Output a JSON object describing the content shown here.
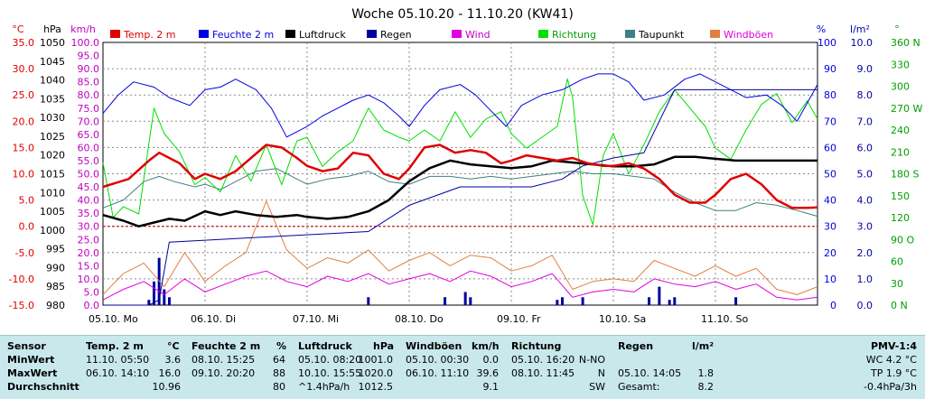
{
  "title": "Woche 05.10.20 - 11.10.20 (KW41)",
  "colors": {
    "temp": "#e00000",
    "humidity": "#0000e0",
    "pressure": "#000000",
    "rain": "#0000a0",
    "wind": "#e000e0",
    "direction": "#00e000",
    "dewpoint": "#408080",
    "gust": "#e08040"
  },
  "axis_units": {
    "temp": "°C",
    "pressure": "hPa",
    "wind": "km/h",
    "humidity": "%",
    "rain": "l/m²",
    "direction": "°"
  },
  "chart_data": {
    "type": "line",
    "title": "Woche 05.10.20 - 11.10.20 (KW41)",
    "legend_position": "top",
    "grid": true,
    "x_labels": [
      "05.10. Mo",
      "06.10. Di",
      "07.10. Mi",
      "08.10. Do",
      "09.10. Fr",
      "10.10. Sa",
      "11.10. So"
    ],
    "x_range": [
      0,
      7
    ],
    "axes": {
      "temp": {
        "unit": "°C",
        "ylim": [
          -15,
          35
        ],
        "ticks": [
          "35.0",
          "30.0",
          "25.0",
          "20.0",
          "15.0",
          "10.0",
          "5.0",
          "0.0",
          "-5.0",
          "-10.0",
          "-15.0"
        ]
      },
      "pressure": {
        "unit": "hPa",
        "ylim": [
          980,
          1050
        ],
        "ticks": [
          "1050",
          "1045",
          "1040",
          "1035",
          "1030",
          "1025",
          "1020",
          "1015",
          "1010",
          "1005",
          "1000",
          "995",
          "990",
          "985",
          "980"
        ]
      },
      "wind": {
        "unit": "km/h",
        "ylim": [
          0,
          100
        ],
        "ticks": [
          "100.0",
          "95.0",
          "90.0",
          "85.0",
          "80.0",
          "75.0",
          "70.0",
          "65.0",
          "60.0",
          "55.0",
          "50.0",
          "45.0",
          "40.0",
          "35.0",
          "30.0",
          "25.0",
          "20.0",
          "15.0",
          "10.0",
          "5.0",
          "0.0"
        ]
      },
      "humidity": {
        "unit": "%",
        "ylim": [
          0,
          100
        ],
        "ticks": [
          "100",
          "90",
          "80",
          "70",
          "60",
          "50",
          "40",
          "30",
          "20",
          "10",
          "0"
        ]
      },
      "rain": {
        "unit": "l/m²",
        "ylim": [
          0,
          10
        ],
        "ticks": [
          "10.0",
          "9.0",
          "8.0",
          "7.0",
          "6.0",
          "5.0",
          "4.0",
          "3.0",
          "2.0",
          "1.0",
          "0.0"
        ]
      },
      "direction": {
        "unit": "°",
        "ylim": [
          0,
          360
        ],
        "ticks": [
          "360 N",
          "330",
          "300",
          "270 W",
          "240",
          "210",
          "180 S",
          "150",
          "120",
          "90 O",
          "60",
          "30",
          "0 N"
        ]
      }
    },
    "series": [
      {
        "name": "Temp. 2 m",
        "axis": "temp",
        "color": "#e00000",
        "x": [
          0,
          0.25,
          0.45,
          0.55,
          0.75,
          0.9,
          1.0,
          1.15,
          1.3,
          1.45,
          1.6,
          1.75,
          1.9,
          2.0,
          2.15,
          2.3,
          2.45,
          2.6,
          2.75,
          2.9,
          3.0,
          3.15,
          3.3,
          3.45,
          3.6,
          3.75,
          3.9,
          4.0,
          4.15,
          4.3,
          4.45,
          4.6,
          4.75,
          4.9,
          5.0,
          5.15,
          5.3,
          5.45,
          5.6,
          5.75,
          5.9,
          6.0,
          6.15,
          6.3,
          6.45,
          6.6,
          6.75,
          6.9,
          7.0
        ],
        "values": [
          7.5,
          9.0,
          12.5,
          14.0,
          12.0,
          9.0,
          10.0,
          9.0,
          10.5,
          13.0,
          15.5,
          15.0,
          13.0,
          11.5,
          10.5,
          11.0,
          14.0,
          13.5,
          10.0,
          9.0,
          11.0,
          15.0,
          15.5,
          14.0,
          14.5,
          14.0,
          12.0,
          12.5,
          13.5,
          13.0,
          12.5,
          13.0,
          12.0,
          11.5,
          11.5,
          12.0,
          11.0,
          9.0,
          6.0,
          4.5,
          4.5,
          6.0,
          9.0,
          10.0,
          8.0,
          5.0,
          3.5,
          3.5,
          3.6
        ]
      },
      {
        "name": "Feuchte 2 m",
        "axis": "humidity",
        "color": "#0000e0",
        "x": [
          0,
          0.15,
          0.3,
          0.5,
          0.65,
          0.85,
          1.0,
          1.15,
          1.3,
          1.5,
          1.65,
          1.8,
          2.0,
          2.15,
          2.3,
          2.45,
          2.6,
          2.75,
          2.9,
          3.0,
          3.15,
          3.3,
          3.5,
          3.65,
          3.8,
          3.95,
          4.1,
          4.3,
          4.5,
          4.7,
          4.85,
          5.0,
          5.15,
          5.3,
          5.5,
          5.7,
          5.85,
          6.0,
          6.15,
          6.3,
          6.5,
          6.65,
          6.8,
          7.0
        ],
        "values": [
          73,
          80,
          85,
          83,
          79,
          76,
          82,
          83,
          86,
          82,
          75,
          64,
          68,
          72,
          75,
          78,
          80,
          77,
          72,
          68,
          76,
          82,
          84,
          80,
          74,
          68,
          76,
          80,
          82,
          86,
          88,
          88,
          85,
          78,
          80,
          86,
          88,
          85,
          82,
          79,
          80,
          76,
          70,
          84
        ]
      },
      {
        "name": "Luftdruck",
        "axis": "pressure",
        "color": "#000000",
        "x": [
          0,
          0.2,
          0.35,
          0.5,
          0.65,
          0.8,
          1.0,
          1.15,
          1.3,
          1.5,
          1.7,
          1.9,
          2.0,
          2.2,
          2.4,
          2.6,
          2.8,
          3.0,
          3.2,
          3.4,
          3.6,
          3.8,
          4.0,
          4.2,
          4.4,
          4.6,
          4.8,
          5.0,
          5.2,
          5.4,
          5.6,
          5.8,
          6.0,
          6.2,
          6.4,
          6.6,
          6.8,
          7.0
        ],
        "values": [
          1004,
          1002.5,
          1001,
          1002,
          1003,
          1002.5,
          1005,
          1004,
          1005,
          1004,
          1003.5,
          1004,
          1003.5,
          1003,
          1003.5,
          1005,
          1008,
          1013,
          1016.5,
          1018.5,
          1017.5,
          1017,
          1016.5,
          1017,
          1018.5,
          1018,
          1017.5,
          1017,
          1017,
          1017.5,
          1019.5,
          1019.5,
          1019,
          1018.5,
          1018.5,
          1018.5,
          1018.5,
          1018.5
        ]
      },
      {
        "name": "Regen",
        "axis": "rain",
        "color": "#0000a0",
        "x": [
          0,
          0.45,
          0.55,
          0.65,
          2.6,
          3.0,
          3.5,
          4.2,
          4.5,
          4.7,
          5.0,
          5.3,
          5.6,
          6.0,
          7.0
        ],
        "values": [
          0,
          0,
          0.2,
          2.4,
          2.8,
          3.8,
          4.5,
          4.5,
          4.8,
          5.3,
          5.6,
          5.8,
          8.2,
          8.2,
          8.2
        ]
      },
      {
        "name": "Wind",
        "axis": "wind",
        "color": "#e000e0",
        "x": [
          0,
          0.2,
          0.4,
          0.6,
          0.8,
          1.0,
          1.2,
          1.4,
          1.6,
          1.8,
          2.0,
          2.2,
          2.4,
          2.6,
          2.8,
          3.0,
          3.2,
          3.4,
          3.6,
          3.8,
          4.0,
          4.2,
          4.4,
          4.6,
          4.8,
          5.0,
          5.2,
          5.4,
          5.6,
          5.8,
          6.0,
          6.2,
          6.4,
          6.6,
          6.8,
          7.0
        ],
        "values": [
          2,
          6,
          9,
          4,
          10,
          5,
          8,
          11,
          13,
          9,
          7,
          11,
          9,
          12,
          8,
          10,
          12,
          9,
          13,
          11,
          7,
          9,
          12,
          3,
          5,
          6,
          5,
          10,
          8,
          7,
          9,
          6,
          8,
          3,
          2,
          3
        ]
      },
      {
        "name": "Richtung",
        "axis": "direction",
        "color": "#00e000",
        "x": [
          0,
          0.1,
          0.2,
          0.35,
          0.5,
          0.6,
          0.75,
          0.9,
          1.0,
          1.15,
          1.3,
          1.45,
          1.6,
          1.75,
          1.9,
          2.0,
          2.15,
          2.3,
          2.45,
          2.6,
          2.75,
          2.9,
          3.0,
          3.15,
          3.3,
          3.45,
          3.6,
          3.75,
          3.9,
          4.0,
          4.15,
          4.3,
          4.45,
          4.55,
          4.6,
          4.7,
          4.8,
          4.9,
          5.0,
          5.15,
          5.3,
          5.45,
          5.6,
          5.75,
          5.9,
          6.0,
          6.15,
          6.3,
          6.45,
          6.6,
          6.75,
          6.9,
          7.0
        ],
        "values": [
          195,
          120,
          135,
          125,
          270,
          235,
          210,
          165,
          175,
          155,
          205,
          170,
          220,
          165,
          225,
          230,
          190,
          210,
          225,
          270,
          240,
          230,
          225,
          240,
          225,
          265,
          230,
          255,
          265,
          235,
          215,
          230,
          245,
          310,
          285,
          150,
          110,
          205,
          235,
          180,
          220,
          265,
          295,
          270,
          245,
          215,
          200,
          240,
          275,
          290,
          250,
          280,
          255
        ]
      },
      {
        "name": "Taupunkt",
        "axis": "temp",
        "color": "#408080",
        "x": [
          0,
          0.2,
          0.4,
          0.55,
          0.7,
          0.9,
          1.0,
          1.15,
          1.3,
          1.5,
          1.7,
          1.9,
          2.0,
          2.2,
          2.4,
          2.6,
          2.8,
          3.0,
          3.2,
          3.4,
          3.6,
          3.8,
          4.0,
          4.2,
          4.4,
          4.6,
          4.8,
          5.0,
          5.2,
          5.4,
          5.6,
          5.8,
          6.0,
          6.2,
          6.4,
          6.6,
          6.8,
          7.0
        ],
        "values": [
          3.5,
          5.0,
          8.5,
          9.5,
          8.5,
          7.5,
          8.0,
          7.0,
          8.5,
          10.5,
          11.0,
          9.0,
          8.0,
          9.0,
          9.5,
          10.5,
          8.5,
          8.0,
          9.5,
          9.5,
          9.0,
          9.5,
          9.0,
          9.5,
          10.0,
          10.5,
          10.0,
          10.0,
          9.5,
          9.0,
          6.5,
          4.5,
          3.0,
          3.0,
          4.5,
          4.0,
          3.0,
          1.9
        ]
      },
      {
        "name": "Windböen",
        "axis": "wind",
        "color": "#e08040",
        "x": [
          0,
          0.2,
          0.4,
          0.6,
          0.8,
          1.0,
          1.2,
          1.4,
          1.6,
          1.8,
          2.0,
          2.2,
          2.4,
          2.6,
          2.8,
          3.0,
          3.2,
          3.4,
          3.6,
          3.8,
          4.0,
          4.2,
          4.4,
          4.6,
          4.8,
          5.0,
          5.2,
          5.4,
          5.6,
          5.8,
          6.0,
          6.2,
          6.4,
          6.6,
          6.8,
          7.0
        ],
        "values": [
          4,
          12,
          16,
          7,
          20,
          9,
          15,
          20,
          39.6,
          21,
          14,
          18,
          16,
          21,
          13,
          17,
          20,
          15,
          19,
          18,
          13,
          15,
          19,
          6,
          9,
          10,
          9,
          17,
          14,
          11,
          15,
          11,
          14,
          6,
          4,
          7
        ]
      }
    ],
    "rain_bars": {
      "x": [
        0.45,
        0.5,
        0.55,
        0.6,
        0.65,
        2.6,
        3.35,
        3.55,
        3.6,
        4.45,
        4.5,
        4.7,
        5.35,
        5.45,
        5.55,
        5.6,
        6.2
      ],
      "values": [
        0.2,
        0.9,
        1.8,
        0.6,
        0.3,
        0.3,
        0.3,
        0.5,
        0.3,
        0.2,
        0.3,
        0.3,
        0.3,
        0.7,
        0.2,
        0.3,
        0.3
      ]
    }
  },
  "table": {
    "rows": [
      "Sensor",
      "MinWert",
      "MaxWert",
      "Durchschnitt"
    ],
    "temp": {
      "header": "Temp. 2 m",
      "unit": "°C",
      "min_time": "11.10.  05:50",
      "min": "3.6",
      "max_time": "06.10.  14:10",
      "max": "16.0",
      "avg": "10.96"
    },
    "humidity": {
      "header": "Feuchte  2 m",
      "unit": "%",
      "min_time": "08.10.  15:25",
      "min": "64",
      "max_time": "09.10.  20:20",
      "max": "88",
      "avg": "80"
    },
    "pressure": {
      "header": "Luftdruck",
      "unit": "hPa",
      "min_time": "05.10.  08:20",
      "min": "1001.0",
      "max_time": "10.10.  15:55",
      "max": "1020.0",
      "trend": "^1.4hPa/h",
      "avg": "1012.5"
    },
    "gust": {
      "header": "Windböen",
      "unit": "km/h",
      "min_time": "05.10.  00:30",
      "min": "0.0",
      "max_time": "06.10.  11:10",
      "max": "39.6",
      "avg": "9.1"
    },
    "direction": {
      "header": "Richtung",
      "min_time": "05.10.  16:20",
      "min": "N-NO",
      "max_time": "08.10.  11:45",
      "max": "N",
      "avg": "SW"
    },
    "rain": {
      "header": "Regen",
      "unit": "l/m²",
      "max_time": "05.10.  14:05",
      "max": "1.8",
      "total_label": "Gesamt:",
      "total": "8.2"
    },
    "pmv": {
      "header": "PMV-1:4",
      "wc": "WC 4.2 °C",
      "tp": "TP 1.9 °C",
      "trend": "-0.4hPa/3h"
    }
  }
}
